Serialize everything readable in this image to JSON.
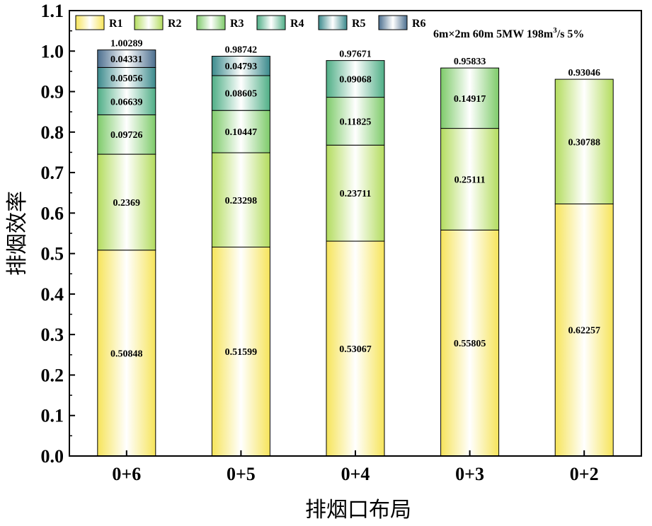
{
  "chart_data": {
    "type": "bar",
    "stacked": true,
    "xlabel": "排烟口布局",
    "ylabel": "排烟效率",
    "ylim": [
      0,
      1.1
    ],
    "yticks": [
      "0.0",
      "0.1",
      "0.2",
      "0.3",
      "0.4",
      "0.5",
      "0.6",
      "0.7",
      "0.8",
      "0.9",
      "1.0",
      "1.1"
    ],
    "categories": [
      "0+6",
      "0+5",
      "0+4",
      "0+3",
      "0+2"
    ],
    "legend_position": "top-left",
    "annotation": {
      "prefix": "6m×2m 60m 5MW  198m",
      "superscript": "3",
      "suffix": "/s  5%"
    },
    "series": [
      {
        "name": "R1",
        "color": "#f6e45a",
        "values": [
          0.50848,
          0.51599,
          0.53067,
          0.55805,
          0.62257
        ],
        "labels": [
          "0.50848",
          "0.51599",
          "0.53067",
          "0.55805",
          "0.62257"
        ]
      },
      {
        "name": "R2",
        "color": "#b3dc5e",
        "values": [
          0.2369,
          0.23298,
          0.23711,
          0.25111,
          0.30788
        ],
        "labels": [
          "0.2369",
          "0.23298",
          "0.23711",
          "0.25111",
          "0.30788"
        ]
      },
      {
        "name": "R3",
        "color": "#7ecb6a",
        "values": [
          0.09726,
          0.10447,
          0.11825,
          0.14917,
          null
        ],
        "labels": [
          "0.09726",
          "0.10447",
          "0.11825",
          "0.14917",
          ""
        ]
      },
      {
        "name": "R4",
        "color": "#4fae86",
        "values": [
          0.06639,
          0.08605,
          0.09068,
          null,
          null
        ],
        "labels": [
          "0.06639",
          "0.08605",
          "0.09068",
          "",
          ""
        ]
      },
      {
        "name": "R5",
        "color": "#3b8a8c",
        "values": [
          0.05056,
          0.04793,
          null,
          null,
          null
        ],
        "labels": [
          "0.05056",
          "0.04793",
          "",
          "",
          ""
        ]
      },
      {
        "name": "R6",
        "color": "#4c6f8f",
        "values": [
          0.04331,
          null,
          null,
          null,
          null
        ],
        "labels": [
          "0.04331",
          "",
          "",
          "",
          ""
        ]
      }
    ],
    "totals": [
      1.00289,
      0.98742,
      0.97671,
      0.95833,
      0.93046
    ],
    "total_labels": [
      "1.00289",
      "0.98742",
      "0.97671",
      "0.95833",
      "0.93046"
    ]
  }
}
